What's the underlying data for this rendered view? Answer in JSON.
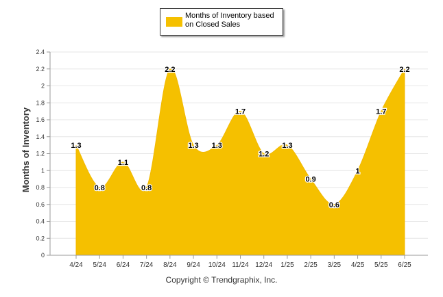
{
  "chart_data": {
    "type": "area",
    "categories": [
      "4/24",
      "5/24",
      "6/24",
      "7/24",
      "8/24",
      "9/24",
      "10/24",
      "11/24",
      "12/24",
      "1/25",
      "2/25",
      "3/25",
      "4/25",
      "5/25",
      "6/25"
    ],
    "series": [
      {
        "name": "Months of Inventory based on Closed Sales",
        "values": [
          1.3,
          0.8,
          1.1,
          0.8,
          2.2,
          1.3,
          1.3,
          1.7,
          1.2,
          1.3,
          0.9,
          0.6,
          1,
          1.7,
          2.2
        ],
        "labels": [
          "1.3",
          "0.8",
          "1.1",
          "0.8",
          "2.2",
          "1.3",
          "1.3",
          "1.7",
          "1.2",
          "1.3",
          "0.9",
          "0.6",
          "1",
          "1.7",
          "2.2"
        ]
      }
    ],
    "yticks": [
      "0",
      "0.2",
      "0.4",
      "0.6",
      "0.8",
      "1",
      "1.2",
      "1.4",
      "1.6",
      "1.8",
      "2",
      "2.2",
      "2.4"
    ],
    "ylim": [
      0,
      2.4
    ],
    "ylabel": "Months of Inventory",
    "xlabel": "",
    "grid": true,
    "legend": "top-center",
    "color": "#f5c000"
  },
  "legend": {
    "line1": "Months of Inventory based",
    "line2": "on Closed Sales"
  },
  "footer": {
    "copyright": "Copyright © Trendgraphix, Inc."
  }
}
